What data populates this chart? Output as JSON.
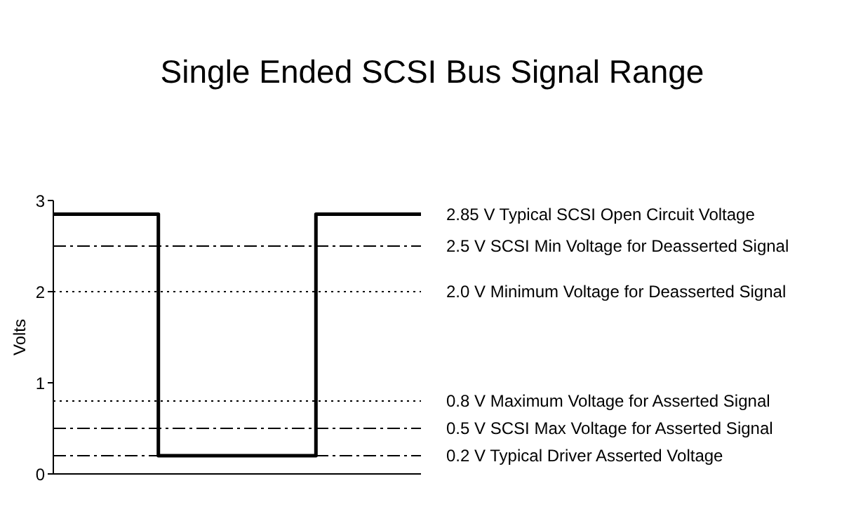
{
  "chart_data": {
    "type": "step",
    "title": "Single Ended SCSI Bus Signal Range",
    "ylabel": "Volts",
    "categories": [
      null,
      null,
      null,
      null,
      null,
      null,
      null,
      null
    ],
    "series": [
      {
        "color": "#000000",
        "values": [
          2.85,
          2.85,
          0.2,
          0.2,
          0.2,
          2.85,
          2.85,
          2.85
        ]
      }
    ],
    "ylim": [
      0,
      3
    ],
    "yticks": [
      0,
      1,
      2,
      3
    ],
    "marker": "none",
    "line_style": "solid",
    "annotations": [
      "2.85 V Typical SCSI Open Circuit Voltage"
    ],
    "ref_lines": [
      {
        "axis": "y",
        "value": 2.5,
        "label": "2.5 V SCSI  Min Voltage for Deasserted Signal",
        "color": "#000000",
        "line_style": "dashdot"
      },
      {
        "axis": "y",
        "value": 2.0,
        "label": "2.0 V Minimum Voltage for Deasserted Signal",
        "color": "#000000",
        "line_style": "dotted"
      },
      {
        "axis": "y",
        "value": 0.8,
        "label": "0.8 V Maximum Voltage for Asserted Signal",
        "color": "#000000",
        "line_style": "dotted"
      },
      {
        "axis": "y",
        "value": 0.5,
        "label": "0.5 V SCSI Max Voltage for Asserted Signal",
        "color": "#000000",
        "line_style": "dashdot"
      },
      {
        "axis": "y",
        "value": 0.2,
        "label": "0.2 V  Typical Driver Asserted Voltage",
        "color": "#000000",
        "line_style": "dashdot"
      }
    ]
  }
}
